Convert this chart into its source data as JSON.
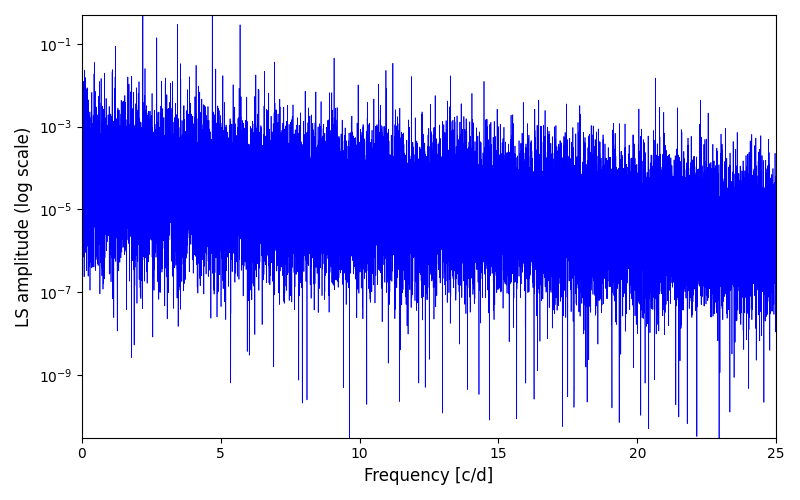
{
  "xlabel": "Frequency [c/d]",
  "ylabel": "LS amplitude (log scale)",
  "xlim": [
    0,
    25
  ],
  "ylim": [
    3e-11,
    0.5
  ],
  "yticks": [
    1e-09,
    1e-07,
    1e-05,
    0.001,
    0.1
  ],
  "line_color": "#0000ff",
  "line_width": 0.5,
  "background_color": "#ffffff",
  "freq_max": 25.0,
  "n_points": 25000,
  "seed": 17,
  "base_level": -4.3,
  "noise_std": 0.8,
  "envelope_decay": 0.055
}
